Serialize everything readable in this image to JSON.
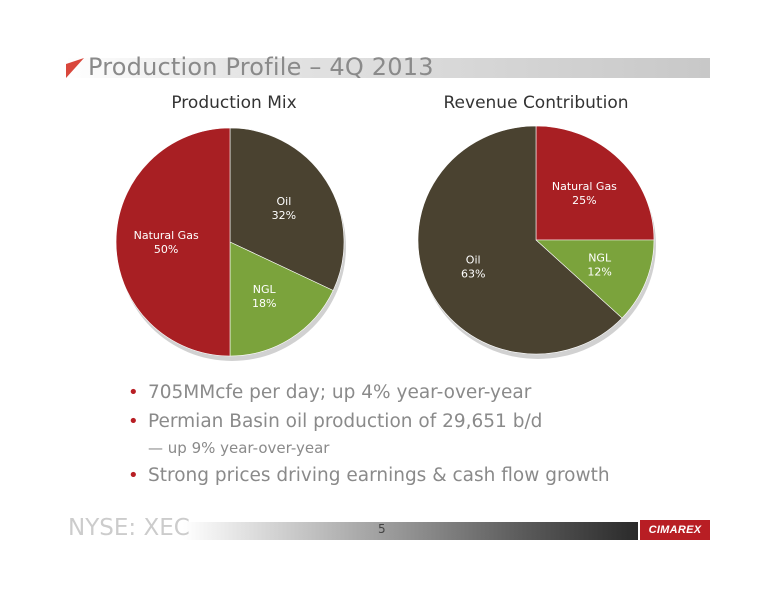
{
  "slide": {
    "title": "Production Profile – 4Q 2013",
    "footer_ticker": "NYSE: XEC",
    "page_number": "5",
    "logo_text": "CIMAREX",
    "accent_color": "#b81e24"
  },
  "bullets": [
    {
      "text": "705MMcfe per day; up 4% year-over-year",
      "level": 1
    },
    {
      "text": "Permian Basin oil production of 29,651 b/d",
      "level": 1
    },
    {
      "text": "— up 9% year-over-year",
      "level": 2
    },
    {
      "text": "Strong prices driving earnings & cash flow growth",
      "level": 1
    }
  ],
  "chart_data": [
    {
      "type": "pie",
      "title": "Production Mix",
      "slices": [
        {
          "label": "Oil",
          "value": 32,
          "display": "32%",
          "color": "#4a4230"
        },
        {
          "label": "NGL",
          "value": 18,
          "display": "18%",
          "color": "#7ba33c"
        },
        {
          "label": "Natural Gas",
          "value": 50,
          "display": "50%",
          "color": "#a81f23"
        }
      ]
    },
    {
      "type": "pie",
      "title": "Revenue Contribution",
      "slices": [
        {
          "label": "Natural Gas",
          "value": 25,
          "display": "25%",
          "color": "#a81f23"
        },
        {
          "label": "NGL",
          "value": 12,
          "display": "12%",
          "color": "#7ba33c"
        },
        {
          "label": "Oil",
          "value": 63,
          "display": "63%",
          "color": "#4a4230"
        }
      ]
    }
  ]
}
